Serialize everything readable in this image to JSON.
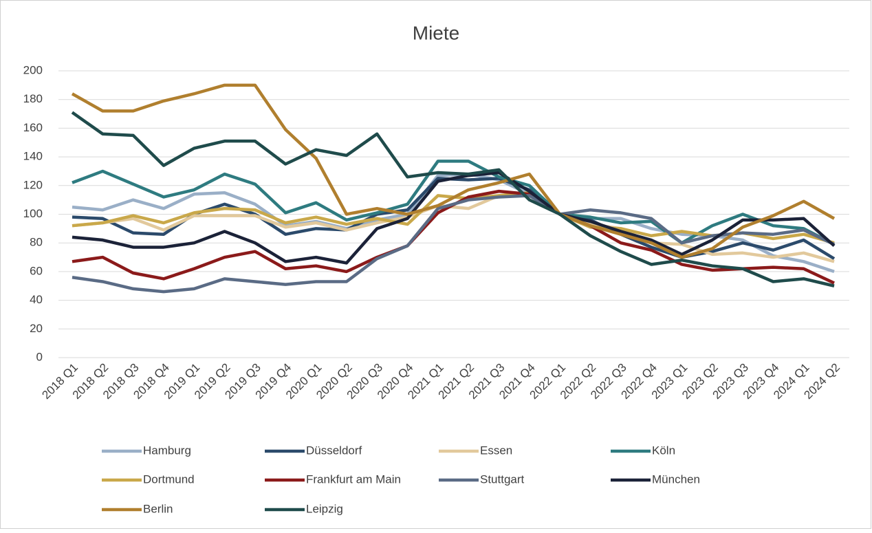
{
  "chart_data": {
    "type": "line",
    "title": "Miete",
    "categories": [
      "2018 Q1",
      "2018 Q2",
      "2018 Q3",
      "2018 Q4",
      "2019 Q1",
      "2019 Q2",
      "2019 Q3",
      "2019 Q4",
      "2020 Q1",
      "2020 Q2",
      "2020 Q3",
      "2020 Q4",
      "2021 Q1",
      "2021 Q2",
      "2021 Q3",
      "2021 Q4",
      "2022 Q1",
      "2022 Q2",
      "2022 Q3",
      "2022 Q4",
      "2023 Q1",
      "2023 Q2",
      "2023 Q3",
      "2023 Q4",
      "2024 Q1",
      "2024 Q2"
    ],
    "series": [
      {
        "name": "Hamburg",
        "color": "#9aafc7",
        "values": [
          105,
          103,
          110,
          104,
          114,
          115,
          107,
          92,
          95,
          90,
          96,
          100,
          127,
          128,
          124,
          114,
          100,
          97,
          97,
          90,
          86,
          85,
          82,
          71,
          67,
          60
        ]
      },
      {
        "name": "Düsseldorf",
        "color": "#2b4a6b",
        "values": [
          98,
          97,
          87,
          86,
          100,
          107,
          100,
          86,
          90,
          89,
          100,
          103,
          125,
          124,
          125,
          117,
          100,
          96,
          86,
          77,
          70,
          74,
          80,
          75,
          82,
          69
        ]
      },
      {
        "name": "Essen",
        "color": "#e2c99c",
        "values": [
          92,
          94,
          97,
          89,
          99,
          99,
          99,
          91,
          94,
          89,
          94,
          98,
          106,
          104,
          113,
          113,
          100,
          93,
          90,
          80,
          79,
          72,
          73,
          70,
          73,
          67
        ]
      },
      {
        "name": "Köln",
        "color": "#2e7b80",
        "values": [
          122,
          130,
          121,
          112,
          117,
          128,
          121,
          101,
          108,
          96,
          101,
          107,
          137,
          137,
          126,
          120,
          100,
          98,
          94,
          95,
          80,
          92,
          100,
          92,
          90,
          79
        ]
      },
      {
        "name": "Dortmund",
        "color": "#c9a84a",
        "values": [
          92,
          94,
          99,
          94,
          101,
          104,
          103,
          94,
          98,
          93,
          97,
          93,
          113,
          111,
          113,
          115,
          100,
          91,
          90,
          85,
          88,
          85,
          87,
          83,
          86,
          80
        ]
      },
      {
        "name": "Frankfurt am Main",
        "color": "#8b1a1a",
        "values": [
          67,
          70,
          59,
          55,
          62,
          70,
          74,
          62,
          64,
          60,
          70,
          78,
          101,
          112,
          116,
          114,
          100,
          92,
          80,
          75,
          65,
          61,
          62,
          63,
          62,
          52
        ]
      },
      {
        "name": "Stuttgart",
        "color": "#5a6b85",
        "values": [
          56,
          53,
          48,
          46,
          48,
          55,
          53,
          51,
          53,
          53,
          69,
          78,
          104,
          110,
          112,
          113,
          100,
          103,
          101,
          97,
          80,
          85,
          87,
          86,
          89,
          79
        ]
      },
      {
        "name": "München",
        "color": "#1b2238",
        "values": [
          84,
          82,
          77,
          77,
          80,
          88,
          80,
          67,
          70,
          66,
          90,
          97,
          123,
          127,
          129,
          116,
          100,
          95,
          88,
          82,
          72,
          82,
          96,
          96,
          97,
          78
        ]
      },
      {
        "name": "Berlin",
        "color": "#b07f2e",
        "values": [
          184,
          172,
          172,
          179,
          184,
          190,
          190,
          159,
          139,
          100,
          104,
          100,
          106,
          117,
          122,
          128,
          100,
          92,
          86,
          80,
          70,
          76,
          91,
          99,
          109,
          97
        ]
      },
      {
        "name": "Leipzig",
        "color": "#1f4b4b",
        "values": [
          171,
          156,
          155,
          134,
          146,
          151,
          151,
          135,
          145,
          141,
          156,
          126,
          129,
          128,
          131,
          110,
          100,
          85,
          74,
          65,
          68,
          64,
          62,
          53,
          55,
          50
        ]
      }
    ],
    "ylim": [
      0,
      200
    ],
    "yticks": [
      0,
      20,
      40,
      60,
      80,
      100,
      120,
      140,
      160,
      180,
      200
    ],
    "grid": true
  }
}
